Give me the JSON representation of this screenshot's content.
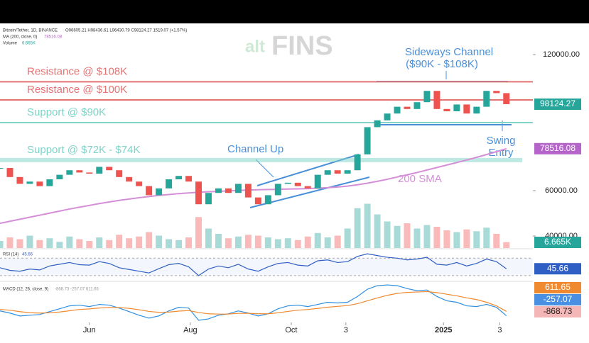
{
  "chart_data": {
    "type": "candlestick",
    "header": {
      "symbol": "Bitcoin/Tether, 1D, BINANCE",
      "ohlc": "O96605.21 H98436.61 L96430.79 C98124.27 1519.07 (+1.57%)",
      "ma": "MA (200, close, 0)",
      "ma_value": "78516.08",
      "volume": "Volume",
      "volume_value": "6.665K",
      "rsi": "RSI (14)",
      "rsi_value": "45.66",
      "macd": "MACD (12, 26, close, 9)",
      "macd_values": "-868.73 -257.07 611.65"
    },
    "logo": {
      "a": "alt",
      "b": "FINS"
    },
    "x": [
      0,
      6,
      12,
      18,
      24,
      30,
      36,
      42,
      48,
      54,
      60,
      66,
      72,
      78,
      84,
      90,
      96,
      102,
      108,
      114,
      120,
      126,
      132,
      138,
      144,
      150,
      156,
      162,
      168,
      174,
      180,
      186,
      192,
      198,
      204,
      210,
      216,
      222,
      228,
      234,
      240,
      246,
      252,
      258,
      264,
      270,
      276,
      282,
      288,
      294,
      300,
      306
    ],
    "xlim": [
      0,
      322
    ],
    "xticks": [
      {
        "value": 54,
        "label": "Jun"
      },
      {
        "value": 115,
        "label": "Aug"
      },
      {
        "value": 176,
        "label": "Oct"
      },
      {
        "value": 209,
        "label": "3"
      },
      {
        "value": 268,
        "label": "2025"
      },
      {
        "value": 302,
        "label": "3"
      }
    ],
    "ylim": [
      34700,
      133750
    ],
    "yticks": [
      {
        "value": 120000,
        "label": "120000.00"
      },
      {
        "value": 60000,
        "label": "60000.00"
      },
      {
        "value": 40000,
        "label": "40000.00"
      }
    ],
    "up_color": "#26a69a",
    "down_color": "#ef5350",
    "series": [
      {
        "name": "Bitcoin/Tether",
        "values": [
          70000,
          66000,
          63000,
          64000,
          62000,
          65000,
          67000,
          69000,
          68000,
          67500,
          70500,
          69000,
          66000,
          64000,
          62000,
          58000,
          61000,
          65000,
          66500,
          64000,
          54000,
          59000,
          61000,
          59000,
          63000,
          57000,
          54000,
          58000,
          63000,
          63500,
          62000,
          61000,
          67000,
          69000,
          67500,
          69000,
          76000,
          88000,
          91000,
          94000,
          97000,
          96000,
          99000,
          104000,
          96000,
          95000,
          98000,
          94000,
          97000,
          104000,
          103000,
          98124.27
        ],
        "badge": "98124.27",
        "badge_color": "#26a69a"
      },
      {
        "name": "200 SMA",
        "color": "#d58fd8",
        "values": [
          45600,
          46500,
          47400,
          48300,
          49200,
          50100,
          51000,
          51900,
          52700,
          53500,
          54300,
          55000,
          55700,
          56300,
          56900,
          57400,
          57900,
          58300,
          58700,
          59000,
          59300,
          59500,
          59700,
          59900,
          60100,
          60300,
          60400,
          60500,
          60600,
          60700,
          60800,
          60900,
          61100,
          61300,
          61600,
          62000,
          62600,
          63300,
          64100,
          65000,
          66000,
          67000,
          68000,
          69100,
          70200,
          71300,
          72400,
          73500,
          74700,
          75900,
          77200,
          78516.08
        ],
        "badge": "78516.08",
        "badge_color": "#b565c9"
      }
    ],
    "volume": {
      "values": [
        8,
        12,
        10,
        14,
        9,
        11,
        7,
        13,
        10,
        8,
        12,
        9,
        15,
        11,
        13,
        18,
        14,
        10,
        9,
        12,
        35,
        22,
        16,
        11,
        13,
        15,
        14,
        12,
        10,
        11,
        9,
        13,
        17,
        12,
        14,
        22,
        45,
        50,
        38,
        30,
        25,
        28,
        22,
        26,
        24,
        20,
        18,
        21,
        19,
        23,
        16,
        6.665
      ],
      "vlim": [
        0,
        80
      ],
      "badge": "6.665K",
      "badge_color": "#26a69a"
    },
    "rsi": {
      "values": [
        48,
        42,
        40,
        45,
        43,
        52,
        56,
        60,
        55,
        54,
        62,
        58,
        48,
        44,
        40,
        36,
        46,
        55,
        58,
        50,
        30,
        45,
        52,
        48,
        56,
        45,
        40,
        50,
        58,
        60,
        54,
        52,
        64,
        66,
        60,
        62,
        74,
        80,
        76,
        72,
        70,
        66,
        68,
        72,
        56,
        54,
        60,
        52,
        58,
        68,
        62,
        45.66
      ],
      "ylim": [
        20,
        90
      ],
      "levels": [
        70,
        30
      ],
      "color": "#2f5fc4",
      "badge": "45.66"
    },
    "macd": {
      "ylim": [
        -1800,
        3800
      ],
      "series": [
        {
          "name": "MACD",
          "color": "#2f8fe0",
          "values": [
            -200,
            -500,
            -900,
            -800,
            -700,
            -300,
            100,
            500,
            600,
            400,
            700,
            600,
            200,
            -300,
            -800,
            -1200,
            -900,
            -200,
            300,
            200,
            -1500,
            -1300,
            -800,
            -600,
            -200,
            -500,
            -900,
            -600,
            100,
            500,
            600,
            400,
            700,
            1000,
            900,
            1000,
            1800,
            2800,
            3300,
            3400,
            3300,
            2900,
            2600,
            2700,
            1800,
            1200,
            1000,
            500,
            400,
            700,
            300,
            -868.73
          ]
        },
        {
          "name": "Signal",
          "color": "#f08a30",
          "values": [
            0,
            -100,
            -300,
            -450,
            -500,
            -460,
            -350,
            -180,
            0,
            80,
            200,
            280,
            260,
            150,
            -40,
            -270,
            -400,
            -360,
            -230,
            -150,
            -420,
            -600,
            -640,
            -630,
            -540,
            -530,
            -600,
            -600,
            -460,
            -270,
            -100,
            0,
            140,
            310,
            430,
            540,
            800,
            1200,
            1600,
            1960,
            2230,
            2370,
            2420,
            2480,
            2340,
            2110,
            1890,
            1610,
            1370,
            1000,
            500,
            -257.07
          ]
        }
      ],
      "badges": [
        {
          "label": "611.65",
          "color": "#f08a30"
        },
        {
          "label": "-257.07",
          "color": "#4a90e2"
        },
        {
          "label": "-868.73",
          "color": "#f4b6b6"
        }
      ]
    },
    "levels": [
      {
        "label": "Resistance @ $108K",
        "value": 108000,
        "color": "#e57373"
      },
      {
        "label": "Resistance @ $100K",
        "value": 100000,
        "color": "#e57373"
      },
      {
        "label": "Support @ $90K",
        "value": 90000,
        "color": "#7fd4c8"
      },
      {
        "label": "Support @ $72K - $74K",
        "value": 73500,
        "color": "#7fd4c8"
      }
    ],
    "annotations": [
      "Sideways Channel",
      "($90K - $108K)",
      "Channel Up",
      "Swing",
      "Entry",
      "200 SMA"
    ]
  }
}
